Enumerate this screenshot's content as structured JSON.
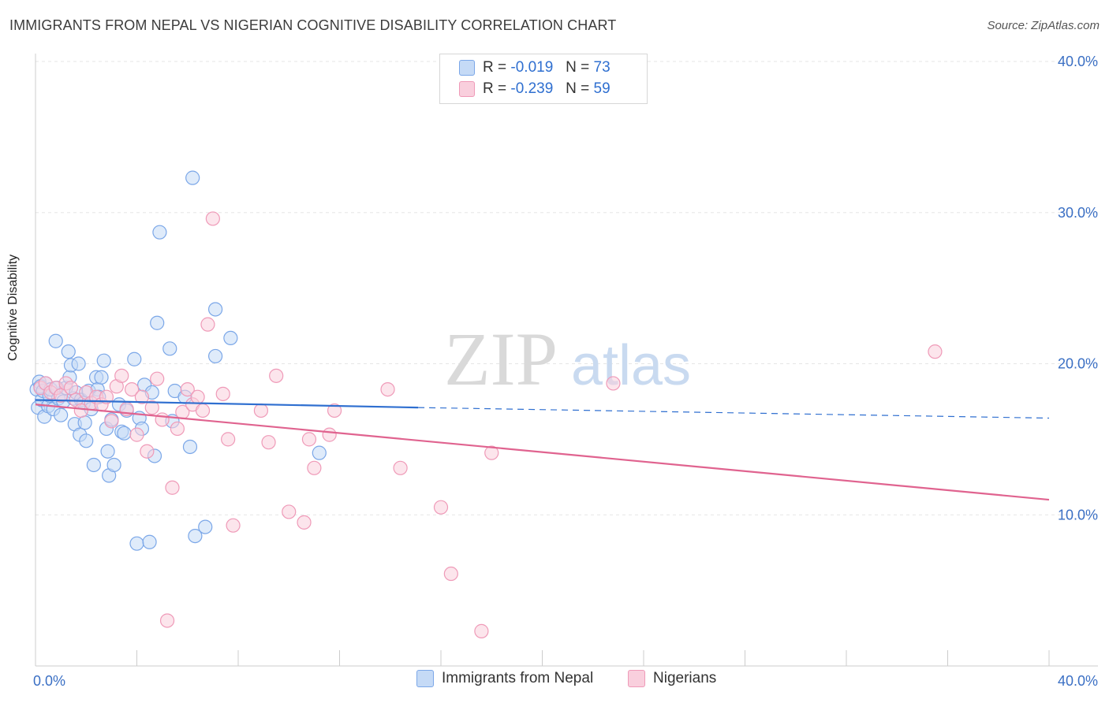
{
  "chart_data": {
    "type": "scatter",
    "title": "IMMIGRANTS FROM NEPAL VS NIGERIAN COGNITIVE DISABILITY CORRELATION CHART",
    "source": "Source: ZipAtlas.com",
    "ylabel": "Cognitive Disability",
    "xlim": [
      0,
      40
    ],
    "ylim": [
      0,
      40
    ],
    "x_tick_labels": [
      "0.0%",
      "40.0%"
    ],
    "y_tick_values": [
      10,
      20,
      30,
      40
    ],
    "y_tick_labels": [
      "10.0%",
      "20.0%",
      "30.0%",
      "40.0%"
    ],
    "grid": true,
    "watermark": "ZIPatlas",
    "legend": [
      {
        "r_label": "R =",
        "r_value": "-0.019",
        "n_label": "N =",
        "n_value": "73"
      },
      {
        "r_label": "R =",
        "r_value": "-0.239",
        "n_label": "N =",
        "n_value": "59"
      }
    ],
    "series": [
      {
        "name": "Immigrants from Nepal",
        "color": "#7ba7e8",
        "fill": "#c5daf6",
        "line_color": "#2f6fd0",
        "trend": {
          "x0": 0,
          "y0": 17.6,
          "x1": 15.1,
          "y1": 17.1,
          "dash_x1": 40,
          "dash_y1": 16.4
        },
        "points": [
          [
            0.05,
            18.3
          ],
          [
            0.1,
            17.1
          ],
          [
            0.15,
            18.8
          ],
          [
            0.2,
            18.5
          ],
          [
            0.25,
            17.6
          ],
          [
            0.3,
            18.2
          ],
          [
            0.35,
            16.5
          ],
          [
            0.4,
            18.7
          ],
          [
            0.5,
            17.2
          ],
          [
            0.55,
            17.9
          ],
          [
            0.6,
            18.3
          ],
          [
            0.7,
            17.0
          ],
          [
            0.8,
            21.5
          ],
          [
            0.85,
            18.4
          ],
          [
            0.9,
            17.7
          ],
          [
            1.0,
            16.6
          ],
          [
            1.1,
            17.5
          ],
          [
            1.2,
            18.4
          ],
          [
            1.3,
            20.8
          ],
          [
            1.35,
            19.1
          ],
          [
            1.4,
            19.9
          ],
          [
            1.5,
            17.7
          ],
          [
            1.55,
            16.0
          ],
          [
            1.6,
            18.1
          ],
          [
            1.7,
            20.0
          ],
          [
            1.75,
            15.3
          ],
          [
            1.8,
            17.6
          ],
          [
            1.9,
            17.4
          ],
          [
            1.95,
            16.1
          ],
          [
            2.0,
            14.9
          ],
          [
            2.1,
            18.2
          ],
          [
            2.2,
            17.0
          ],
          [
            2.3,
            13.3
          ],
          [
            2.4,
            19.1
          ],
          [
            2.45,
            18.3
          ],
          [
            2.5,
            17.8
          ],
          [
            2.6,
            19.1
          ],
          [
            2.7,
            20.2
          ],
          [
            2.8,
            15.7
          ],
          [
            2.85,
            14.2
          ],
          [
            2.9,
            12.6
          ],
          [
            3.0,
            16.3
          ],
          [
            3.1,
            13.3
          ],
          [
            3.3,
            17.3
          ],
          [
            3.4,
            15.5
          ],
          [
            3.5,
            15.4
          ],
          [
            3.6,
            16.9
          ],
          [
            3.9,
            20.3
          ],
          [
            4.0,
            8.1
          ],
          [
            4.1,
            16.4
          ],
          [
            4.2,
            15.7
          ],
          [
            4.3,
            18.6
          ],
          [
            4.5,
            8.2
          ],
          [
            4.6,
            18.1
          ],
          [
            4.7,
            13.9
          ],
          [
            4.8,
            22.7
          ],
          [
            4.9,
            28.7
          ],
          [
            5.3,
            21.0
          ],
          [
            5.4,
            16.2
          ],
          [
            5.5,
            18.2
          ],
          [
            5.9,
            17.8
          ],
          [
            6.1,
            14.5
          ],
          [
            6.2,
            32.3
          ],
          [
            6.3,
            8.6
          ],
          [
            6.7,
            9.2
          ],
          [
            7.1,
            23.6
          ],
          [
            7.1,
            20.5
          ],
          [
            7.7,
            21.7
          ],
          [
            11.2,
            14.1
          ]
        ]
      },
      {
        "name": "Nigerians",
        "color": "#ef9ab8",
        "fill": "#f9cfdd",
        "line_color": "#e0638f",
        "trend": {
          "x0": 0,
          "y0": 17.3,
          "x1": 40,
          "y1": 11.0
        },
        "points": [
          [
            0.2,
            18.4
          ],
          [
            0.4,
            18.7
          ],
          [
            0.6,
            18.1
          ],
          [
            0.8,
            18.4
          ],
          [
            1.0,
            17.9
          ],
          [
            1.2,
            18.7
          ],
          [
            1.4,
            18.4
          ],
          [
            1.6,
            17.6
          ],
          [
            1.8,
            16.9
          ],
          [
            2.0,
            18.1
          ],
          [
            2.2,
            17.4
          ],
          [
            2.4,
            17.8
          ],
          [
            2.6,
            17.3
          ],
          [
            2.8,
            17.8
          ],
          [
            3.0,
            16.2
          ],
          [
            3.2,
            18.5
          ],
          [
            3.4,
            19.2
          ],
          [
            3.6,
            17.0
          ],
          [
            3.8,
            18.3
          ],
          [
            4.0,
            15.3
          ],
          [
            4.2,
            17.8
          ],
          [
            4.4,
            14.2
          ],
          [
            4.6,
            17.1
          ],
          [
            4.8,
            19.0
          ],
          [
            5.0,
            16.3
          ],
          [
            5.2,
            3.0
          ],
          [
            5.4,
            11.8
          ],
          [
            5.6,
            15.7
          ],
          [
            5.8,
            16.8
          ],
          [
            6.0,
            18.3
          ],
          [
            6.2,
            17.3
          ],
          [
            6.4,
            17.8
          ],
          [
            6.6,
            16.9
          ],
          [
            6.8,
            22.6
          ],
          [
            7.0,
            29.6
          ],
          [
            7.4,
            18.0
          ],
          [
            7.6,
            15.0
          ],
          [
            7.8,
            9.3
          ],
          [
            8.9,
            16.9
          ],
          [
            9.2,
            14.8
          ],
          [
            9.5,
            19.2
          ],
          [
            10.0,
            10.2
          ],
          [
            10.6,
            9.5
          ],
          [
            10.8,
            15.0
          ],
          [
            11.0,
            13.1
          ],
          [
            11.6,
            15.3
          ],
          [
            11.8,
            16.9
          ],
          [
            13.9,
            18.3
          ],
          [
            14.4,
            13.1
          ],
          [
            16.0,
            10.5
          ],
          [
            16.4,
            6.1
          ],
          [
            17.6,
            2.3
          ],
          [
            18.0,
            14.1
          ],
          [
            22.8,
            18.7
          ],
          [
            35.5,
            20.8
          ]
        ]
      }
    ]
  }
}
